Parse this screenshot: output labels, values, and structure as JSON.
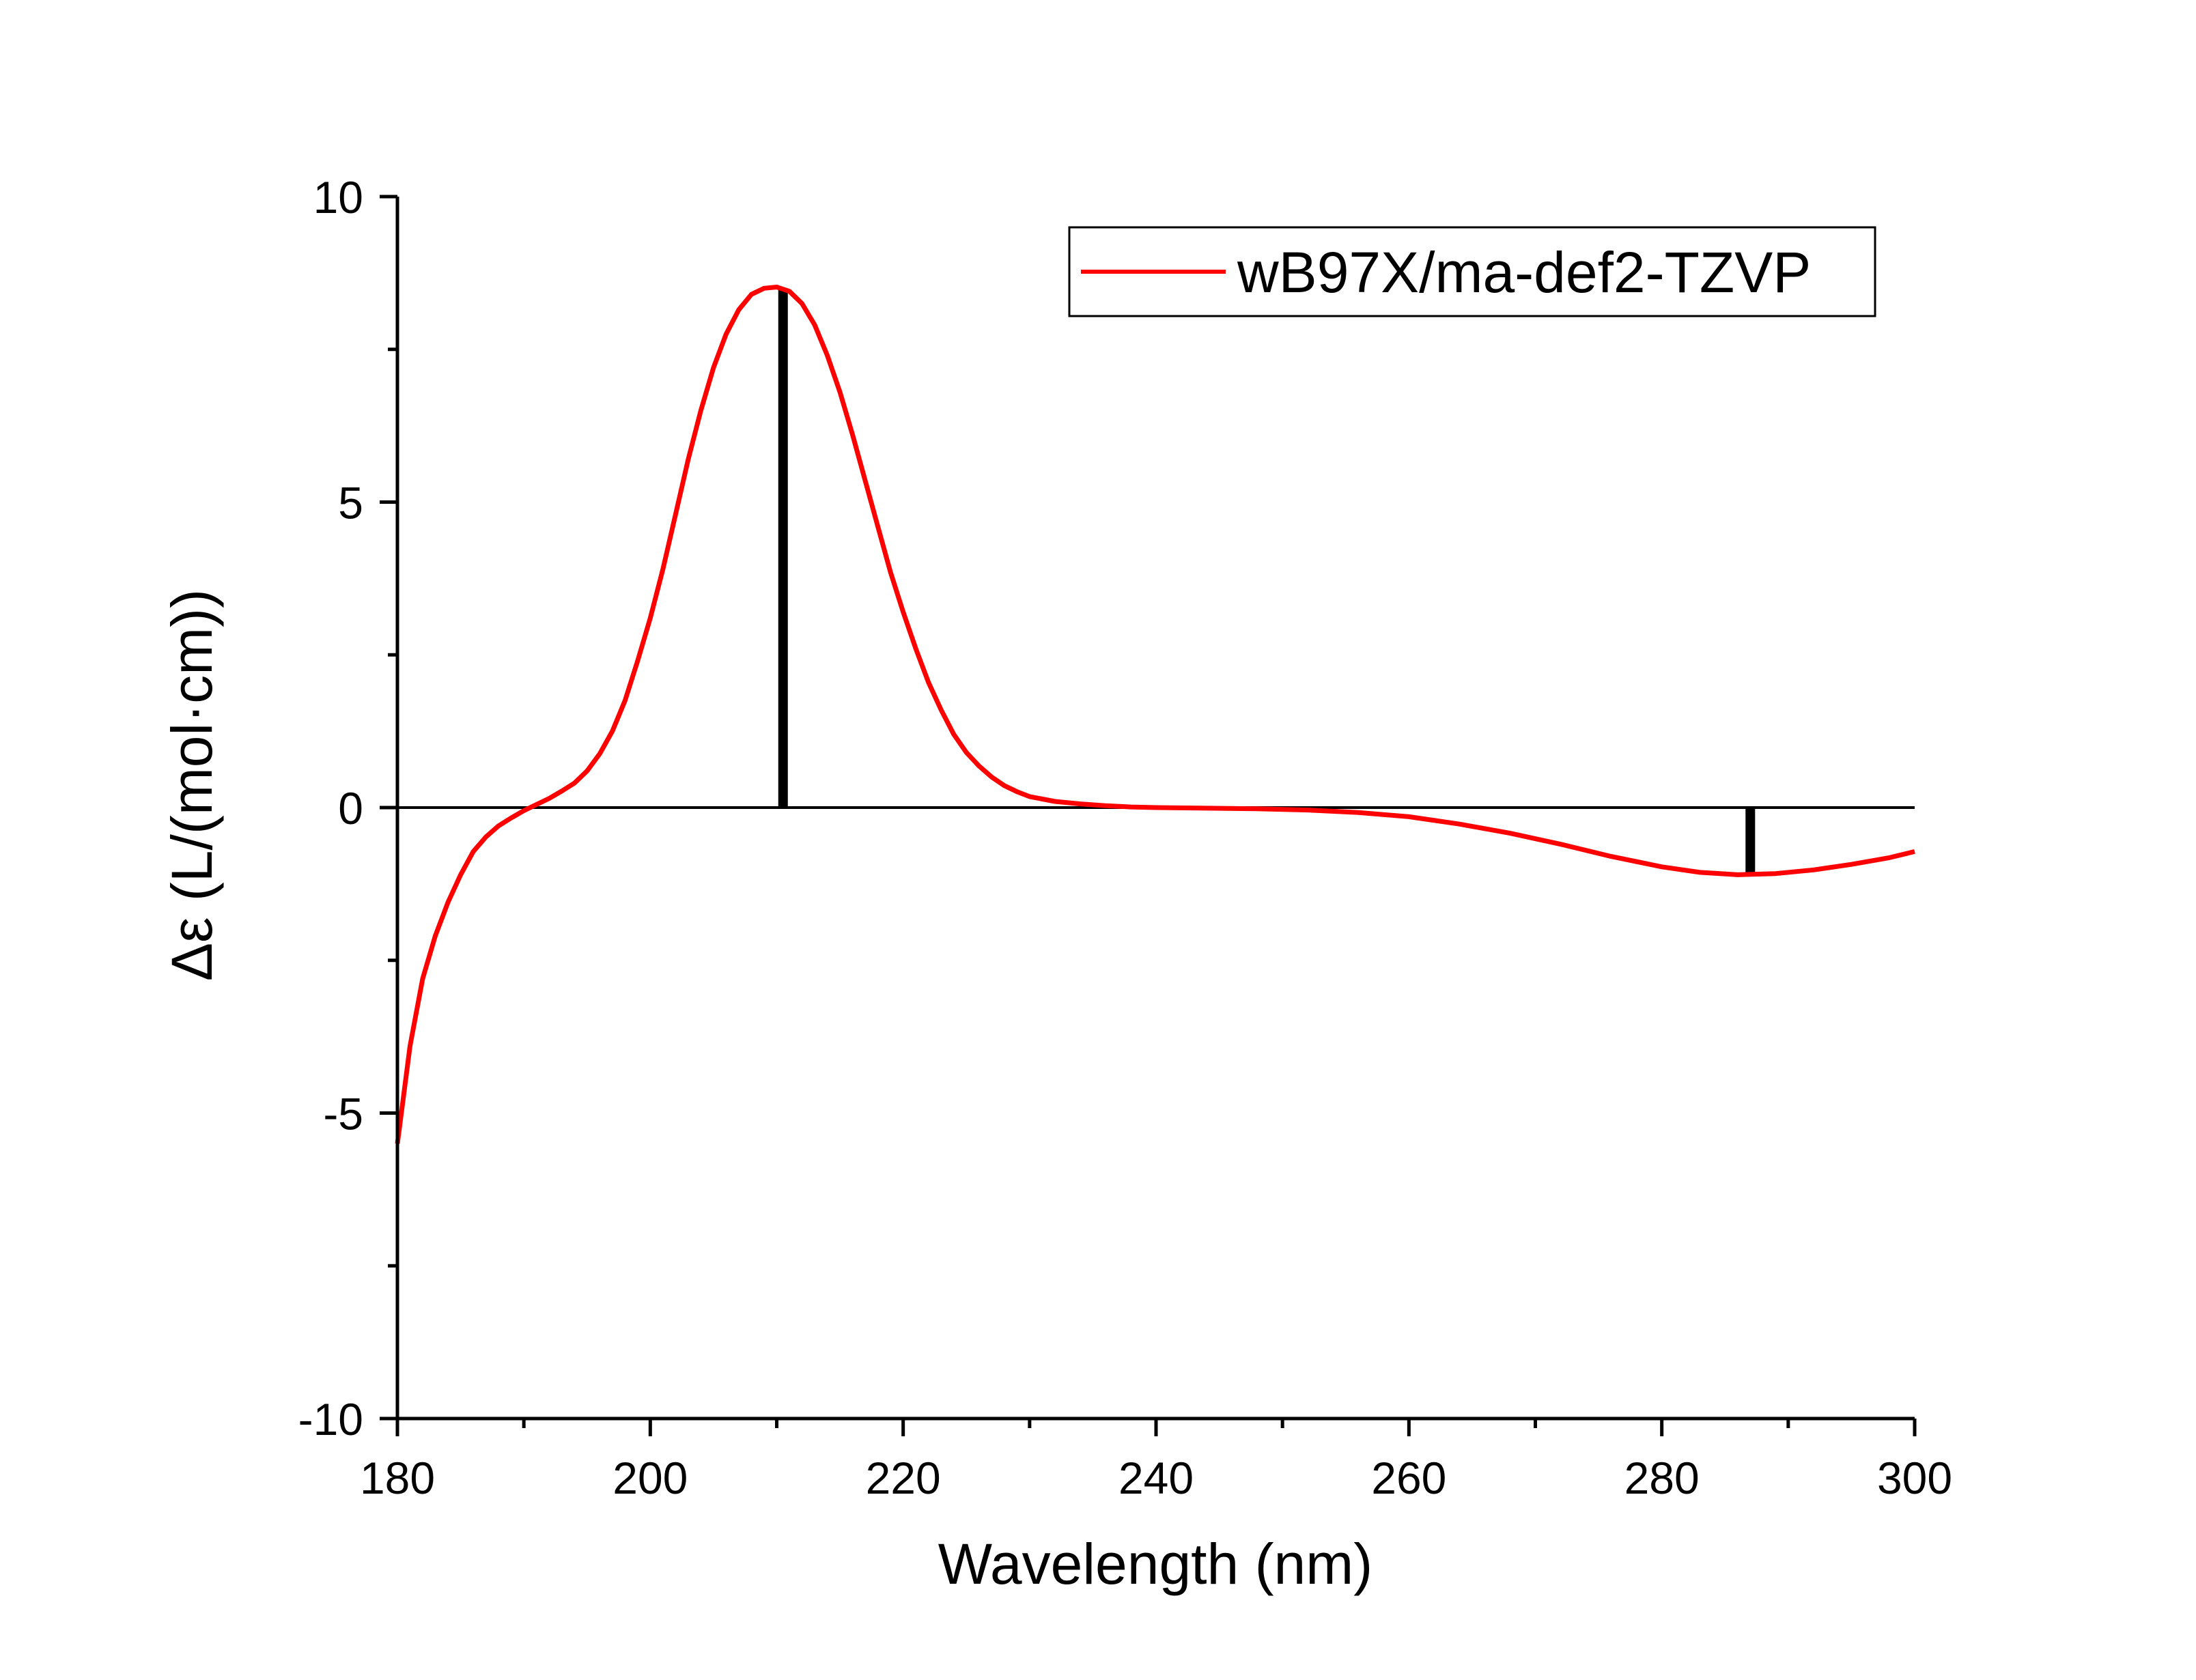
{
  "chart_data": {
    "type": "line",
    "xlabel": "Wavelength (nm)",
    "ylabel": "Δε (L/(mol·cm))",
    "xlim": [
      180,
      300
    ],
    "ylim": [
      -10,
      10
    ],
    "x_ticks": [
      180,
      200,
      220,
      240,
      260,
      280,
      300
    ],
    "x_tick_labels": [
      "180",
      "200",
      "220",
      "240",
      "260",
      "280",
      "300"
    ],
    "y_ticks": [
      -10,
      -5,
      0,
      5,
      10
    ],
    "y_tick_labels": [
      "-10",
      "-5",
      "0",
      "5",
      "10"
    ],
    "x_minor_step": 10,
    "y_minor_step": 2.5,
    "zero_line": true,
    "grid": false,
    "legend": {
      "position": "top-right"
    },
    "series": [
      {
        "name": "wB97X/ma-def2-TZVP",
        "color": "#ff0000",
        "points": [
          [
            180,
            -5.5
          ],
          [
            181,
            -3.9
          ],
          [
            182,
            -2.8
          ],
          [
            183,
            -2.1
          ],
          [
            184,
            -1.55
          ],
          [
            185,
            -1.1
          ],
          [
            186,
            -0.72
          ],
          [
            187,
            -0.48
          ],
          [
            188,
            -0.3
          ],
          [
            189,
            -0.17
          ],
          [
            190,
            -0.05
          ],
          [
            191,
            0.05
          ],
          [
            192,
            0.15
          ],
          [
            193,
            0.27
          ],
          [
            194,
            0.4
          ],
          [
            195,
            0.6
          ],
          [
            196,
            0.88
          ],
          [
            197,
            1.25
          ],
          [
            198,
            1.75
          ],
          [
            199,
            2.4
          ],
          [
            200,
            3.1
          ],
          [
            201,
            3.9
          ],
          [
            202,
            4.8
          ],
          [
            203,
            5.7
          ],
          [
            204,
            6.5
          ],
          [
            205,
            7.2
          ],
          [
            206,
            7.75
          ],
          [
            207,
            8.15
          ],
          [
            208,
            8.4
          ],
          [
            209,
            8.5
          ],
          [
            210,
            8.52
          ],
          [
            211,
            8.45
          ],
          [
            212,
            8.25
          ],
          [
            213,
            7.9
          ],
          [
            214,
            7.4
          ],
          [
            215,
            6.8
          ],
          [
            216,
            6.1
          ],
          [
            217,
            5.35
          ],
          [
            218,
            4.6
          ],
          [
            219,
            3.85
          ],
          [
            220,
            3.2
          ],
          [
            221,
            2.6
          ],
          [
            222,
            2.05
          ],
          [
            223,
            1.6
          ],
          [
            224,
            1.2
          ],
          [
            225,
            0.9
          ],
          [
            226,
            0.68
          ],
          [
            227,
            0.5
          ],
          [
            228,
            0.36
          ],
          [
            229,
            0.26
          ],
          [
            230,
            0.18
          ],
          [
            232,
            0.1
          ],
          [
            234,
            0.06
          ],
          [
            236,
            0.03
          ],
          [
            238,
            0.01
          ],
          [
            240,
            0.0
          ],
          [
            244,
            -0.01
          ],
          [
            248,
            -0.02
          ],
          [
            252,
            -0.04
          ],
          [
            256,
            -0.08
          ],
          [
            260,
            -0.15
          ],
          [
            264,
            -0.27
          ],
          [
            268,
            -0.42
          ],
          [
            272,
            -0.6
          ],
          [
            276,
            -0.8
          ],
          [
            280,
            -0.97
          ],
          [
            283,
            -1.06
          ],
          [
            286,
            -1.1
          ],
          [
            289,
            -1.08
          ],
          [
            292,
            -1.02
          ],
          [
            295,
            -0.93
          ],
          [
            298,
            -0.82
          ],
          [
            300,
            -0.72
          ]
        ]
      }
    ],
    "sticks": [
      {
        "x": 210.5,
        "y": 8.5
      },
      {
        "x": 287,
        "y": -1.1
      }
    ]
  }
}
